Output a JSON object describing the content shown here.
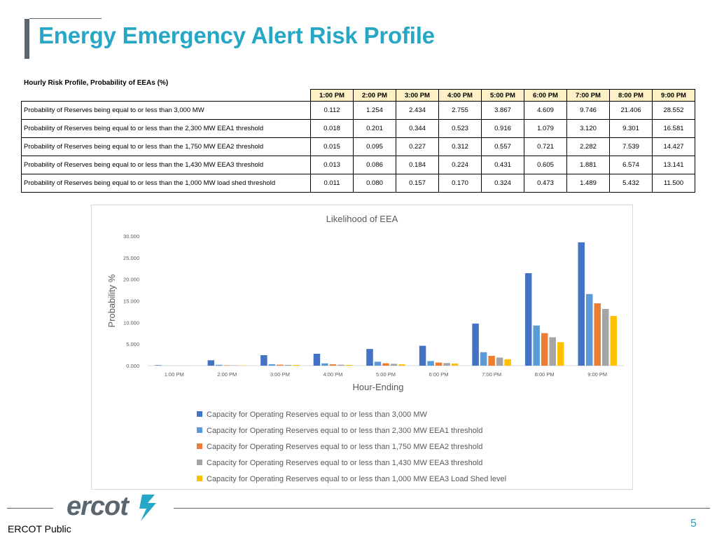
{
  "slide": {
    "title": "Energy Emergency Alert Risk Profile",
    "footer_label": "ERCOT Public",
    "page_number": "5",
    "logo_text": "ercot"
  },
  "colors": {
    "title": "#26a7c5",
    "accent_bar": "#5b6770",
    "header_fill": "#fdf0c4",
    "series": [
      "#4472c4",
      "#5b9bd5",
      "#ed7d31",
      "#a5a5a5",
      "#ffc000"
    ]
  },
  "table": {
    "heading": "Hourly Risk Profile, Probability of EEAs (%)",
    "columns": [
      "1:00 PM",
      "2:00 PM",
      "3:00 PM",
      "4:00 PM",
      "5:00 PM",
      "6:00 PM",
      "7:00 PM",
      "8:00 PM",
      "9:00 PM"
    ],
    "rows": [
      {
        "label": "Probability of Reserves being equal to or less than 3,000 MW",
        "values": [
          "0.112",
          "1.254",
          "2.434",
          "2.755",
          "3.867",
          "4.609",
          "9.746",
          "21.406",
          "28.552"
        ]
      },
      {
        "label": "Probability of Reserves being equal to or less than the 2,300 MW EEA1 threshold",
        "values": [
          "0.018",
          "0.201",
          "0.344",
          "0.523",
          "0.916",
          "1.079",
          "3.120",
          "9.301",
          "16.581"
        ]
      },
      {
        "label": "Probability of Reserves being equal to or less than the 1,750 MW EEA2 threshold",
        "values": [
          "0.015",
          "0.095",
          "0.227",
          "0.312",
          "0.557",
          "0.721",
          "2.282",
          "7.539",
          "14.427"
        ]
      },
      {
        "label": "Probability of Reserves being equal to or less than the 1,430 MW EEA3 threshold",
        "values": [
          "0.013",
          "0.086",
          "0.184",
          "0.224",
          "0.431",
          "0.605",
          "1.881",
          "6.574",
          "13.141"
        ]
      },
      {
        "label": "Probability of Reserves being equal to or less than the 1,000 MW load shed threshold",
        "values": [
          "0.011",
          "0.080",
          "0.157",
          "0.170",
          "0.324",
          "0.473",
          "1.489",
          "5.432",
          "11.500"
        ]
      }
    ]
  },
  "chart_data": {
    "type": "bar",
    "title": "Likelihood of EEA",
    "xlabel": "Hour-Ending",
    "ylabel": "Probability %",
    "ylim": [
      0,
      30
    ],
    "yticks": [
      "0.000",
      "5.000",
      "10.000",
      "15.000",
      "20.000",
      "25.000",
      "30.000"
    ],
    "grid": false,
    "legend_position": "bottom",
    "categories": [
      "1:00 PM",
      "2:00 PM",
      "3:00 PM",
      "4:00 PM",
      "5:00 PM",
      "6:00 PM",
      "7:00 PM",
      "8:00 PM",
      "9:00 PM"
    ],
    "series": [
      {
        "name": "Capacity for Operating Reserves equal to or less than 3,000 MW",
        "values": [
          0.112,
          1.254,
          2.434,
          2.755,
          3.867,
          4.609,
          9.746,
          21.406,
          28.552
        ]
      },
      {
        "name": "Capacity for Operating Reserves equal to or less than 2,300 MW EEA1 threshold",
        "values": [
          0.018,
          0.201,
          0.344,
          0.523,
          0.916,
          1.079,
          3.12,
          9.301,
          16.581
        ]
      },
      {
        "name": "Capacity for Operating Reserves equal to or less than 1,750 MW EEA2 threshold",
        "values": [
          0.015,
          0.095,
          0.227,
          0.312,
          0.557,
          0.721,
          2.282,
          7.539,
          14.427
        ]
      },
      {
        "name": "Capacity for Operating Reserves equal to or less than 1,430 MW EEA3 threshold",
        "values": [
          0.013,
          0.086,
          0.184,
          0.224,
          0.431,
          0.605,
          1.881,
          6.574,
          13.141
        ]
      },
      {
        "name": "Capacity for Operating Reserves equal to or less than 1,000 MW EEA3 Load Shed level",
        "values": [
          0.011,
          0.08,
          0.157,
          0.17,
          0.324,
          0.473,
          1.489,
          5.432,
          11.5
        ]
      }
    ]
  }
}
